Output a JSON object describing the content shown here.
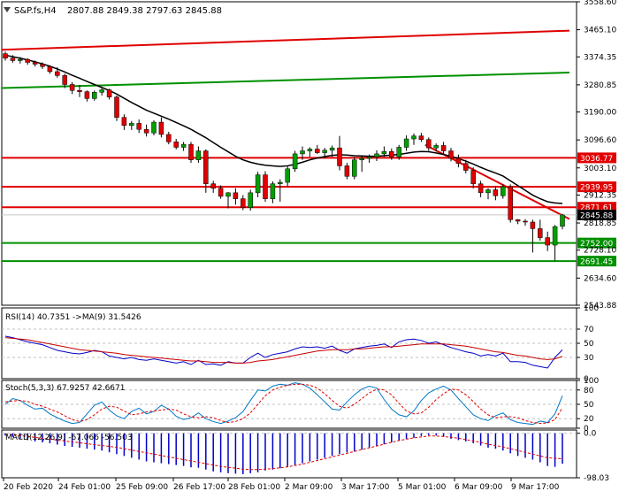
{
  "chart_data": [
    {
      "type": "candlestick",
      "title": "S&P.fs,H4",
      "ohlc_label": "2807.88 2849.38 2797.63 2845.88",
      "ylim": [
        2543.88,
        3558.6
      ],
      "y_ticks": [
        "3558.60",
        "3465.10",
        "3374.35",
        "3280.85",
        "3190.00",
        "3096.60",
        "3003.10",
        "2912.35",
        "2818.85",
        "2728.10",
        "2634.60",
        "2543.88"
      ],
      "x_labels": [
        "20 Feb 2020",
        "24 Feb 01:00",
        "25 Feb 09:00",
        "26 Feb 17:00",
        "28 Feb 01:00",
        "2 Mar 09:00",
        "3 Mar 17:00",
        "5 Mar 01:00",
        "6 Mar 09:00",
        "9 Mar 17:00"
      ],
      "candles": [
        [
          3385,
          3392,
          3362,
          3370
        ],
        [
          3370,
          3380,
          3355,
          3362
        ],
        [
          3362,
          3374,
          3352,
          3366
        ],
        [
          3366,
          3370,
          3348,
          3356
        ],
        [
          3356,
          3362,
          3342,
          3350
        ],
        [
          3350,
          3356,
          3334,
          3342
        ],
        [
          3342,
          3346,
          3318,
          3325
        ],
        [
          3325,
          3340,
          3305,
          3312
        ],
        [
          3312,
          3318,
          3270,
          3282
        ],
        [
          3282,
          3290,
          3250,
          3262
        ],
        [
          3262,
          3280,
          3240,
          3258
        ],
        [
          3258,
          3262,
          3225,
          3235
        ],
        [
          3235,
          3262,
          3228,
          3256
        ],
        [
          3256,
          3270,
          3245,
          3264
        ],
        [
          3264,
          3268,
          3232,
          3240
        ],
        [
          3240,
          3245,
          3160,
          3172
        ],
        [
          3172,
          3182,
          3130,
          3145
        ],
        [
          3145,
          3160,
          3130,
          3152
        ],
        [
          3152,
          3165,
          3120,
          3132
        ],
        [
          3132,
          3148,
          3108,
          3120
        ],
        [
          3120,
          3162,
          3112,
          3156
        ],
        [
          3156,
          3172,
          3105,
          3115
        ],
        [
          3115,
          3124,
          3082,
          3090
        ],
        [
          3090,
          3100,
          3065,
          3072
        ],
        [
          3072,
          3090,
          3060,
          3082
        ],
        [
          3082,
          3090,
          3020,
          3030
        ],
        [
          3030,
          3075,
          3020,
          3060
        ],
        [
          3060,
          3065,
          2920,
          2950
        ],
        [
          2950,
          2960,
          2920,
          2935
        ],
        [
          2935,
          2945,
          2900,
          2908
        ],
        [
          2908,
          2922,
          2868,
          2920
        ],
        [
          2920,
          2935,
          2880,
          2900
        ],
        [
          2900,
          2912,
          2862,
          2870
        ],
        [
          2870,
          2930,
          2860,
          2920
        ],
        [
          2920,
          2990,
          2905,
          2980
        ],
        [
          2980,
          2992,
          2890,
          2900
        ],
        [
          2900,
          2958,
          2885,
          2950
        ],
        [
          2950,
          2965,
          2890,
          2955
        ],
        [
          2955,
          3010,
          2940,
          3000
        ],
        [
          3000,
          3060,
          2990,
          3050
        ],
        [
          3050,
          3075,
          3030,
          3060
        ],
        [
          3060,
          3072,
          3040,
          3066
        ],
        [
          3066,
          3080,
          3050,
          3054
        ],
        [
          3054,
          3070,
          3035,
          3062
        ],
        [
          3062,
          3078,
          3040,
          3070
        ],
        [
          3070,
          3110,
          2995,
          3010
        ],
        [
          3010,
          3020,
          2965,
          2975
        ],
        [
          2975,
          3040,
          2965,
          3030
        ],
        [
          3030,
          3045,
          2990,
          3035
        ],
        [
          3035,
          3048,
          3020,
          3040
        ],
        [
          3040,
          3062,
          3026,
          3050
        ],
        [
          3050,
          3075,
          3040,
          3058
        ],
        [
          3058,
          3068,
          3030,
          3040
        ],
        [
          3040,
          3080,
          3030,
          3072
        ],
        [
          3072,
          3112,
          3060,
          3100
        ],
        [
          3100,
          3118,
          3080,
          3110
        ],
        [
          3110,
          3120,
          3090,
          3098
        ],
        [
          3098,
          3105,
          3060,
          3070
        ],
        [
          3070,
          3085,
          3058,
          3078
        ],
        [
          3078,
          3090,
          3050,
          3060
        ],
        [
          3060,
          3070,
          3025,
          3035
        ],
        [
          3035,
          3048,
          3005,
          3018
        ],
        [
          3018,
          3030,
          2985,
          2995
        ],
        [
          2995,
          3005,
          2935,
          2950
        ],
        [
          2950,
          2960,
          2905,
          2920
        ],
        [
          2920,
          2935,
          2898,
          2930
        ],
        [
          2930,
          2942,
          2895,
          2910
        ],
        [
          2910,
          2948,
          2900,
          2940
        ],
        [
          2940,
          2948,
          2820,
          2830
        ],
        [
          2830,
          2832,
          2815,
          2825
        ],
        [
          2825,
          2832,
          2810,
          2822
        ],
        [
          2822,
          2830,
          2720,
          2800
        ],
        [
          2800,
          2830,
          2760,
          2770
        ],
        [
          2770,
          2790,
          2725,
          2745
        ],
        [
          2745,
          2812,
          2693,
          2807
        ],
        [
          2807.88,
          2849.38,
          2797.63,
          2845.88
        ]
      ],
      "series": [
        {
          "name": "",
          "color": "#000000",
          "values": [
            3380,
            3375,
            3370,
            3364,
            3358,
            3351,
            3343,
            3334,
            3324,
            3313,
            3303,
            3292,
            3282,
            3272,
            3262,
            3250,
            3236,
            3222,
            3209,
            3196,
            3186,
            3176,
            3166,
            3155,
            3144,
            3132,
            3118,
            3104,
            3088,
            3072,
            3057,
            3042,
            3030,
            3022,
            3016,
            3012,
            3010,
            3008,
            3010,
            3015,
            3022,
            3030,
            3036,
            3041,
            3045,
            3047,
            3046,
            3044,
            3043,
            3042,
            3042,
            3044,
            3046,
            3048,
            3052,
            3056,
            3058,
            3057,
            3053,
            3048,
            3042,
            3034,
            3026,
            3016,
            3005,
            2995,
            2986,
            2976,
            2960,
            2944,
            2928,
            2912,
            2900,
            2890,
            2886,
            2884
          ]
        }
      ],
      "trendlines": [
        {
          "color": "#e00000",
          "x": [
            0,
            75
          ],
          "y": [
            3398,
            3462
          ]
        },
        {
          "color": "#009000",
          "x": [
            0,
            75
          ],
          "y": [
            3270,
            3322
          ]
        },
        {
          "color": "#e00000",
          "x": [
            57,
            75
          ],
          "y": [
            3080,
            2832
          ]
        }
      ],
      "levels": [
        {
          "value": 3036.77,
          "label": "3036.77",
          "line_color": "#e00000",
          "tag_color": "#e00000"
        },
        {
          "value": 2939.95,
          "label": "2939.95",
          "line_color": "#e00000",
          "tag_color": "#e00000"
        },
        {
          "value": 2871.61,
          "label": "2871.61",
          "line_color": "#e00000",
          "tag_color": "#e00000"
        },
        {
          "value": 2845.88,
          "label": "2845.88",
          "line_color": "#c8c8c8",
          "tag_color": "#000000"
        },
        {
          "value": 2752.0,
          "label": "2752.00",
          "line_color": "#009000",
          "tag_color": "#009000"
        },
        {
          "value": 2691.45,
          "label": "2691.45",
          "line_color": "#009000",
          "tag_color": "#009000"
        }
      ],
      "colors": {
        "bull": "#00a000",
        "bear": "#e00000"
      }
    },
    {
      "type": "line",
      "title": "RSI(14) 40.7351 ->MA(9) 31.5426",
      "ylim": [
        0,
        100
      ],
      "y_ticks": [
        "100",
        "70",
        "50",
        "30",
        "0"
      ],
      "series": [
        {
          "name": "",
          "color": "#0000c8",
          "values": [
            60,
            58,
            55,
            52,
            50,
            48,
            44,
            40,
            38,
            36,
            35,
            37,
            40,
            38,
            32,
            30,
            28,
            30,
            27,
            26,
            28,
            26,
            24,
            22,
            24,
            20,
            26,
            20,
            21,
            19,
            24,
            22,
            22,
            30,
            36,
            30,
            34,
            36,
            38,
            42,
            45,
            44,
            45,
            43,
            46,
            40,
            36,
            42,
            44,
            46,
            47,
            49,
            44,
            52,
            55,
            56,
            54,
            50,
            52,
            48,
            44,
            41,
            38,
            36,
            32,
            34,
            32,
            36,
            24,
            24,
            23,
            19,
            17,
            15,
            30,
            40.7351
          ]
        },
        {
          "name": "",
          "color": "#c80000",
          "values": [
            58,
            57,
            56,
            55,
            53,
            51,
            49,
            47,
            45,
            43,
            41,
            40,
            39,
            38,
            37,
            36,
            34,
            33,
            32,
            31,
            30,
            29,
            28,
            27,
            26,
            25,
            25,
            24,
            23,
            23,
            23,
            22,
            22,
            23,
            25,
            26,
            27,
            29,
            31,
            33,
            35,
            37,
            39,
            40,
            41,
            41,
            41,
            42,
            42,
            43,
            44,
            45,
            45,
            46,
            47,
            48,
            49,
            49,
            49,
            49,
            48,
            47,
            46,
            44,
            42,
            40,
            38,
            37,
            35,
            33,
            32,
            30,
            28,
            27,
            28,
            31.5426
          ]
        }
      ]
    },
    {
      "type": "line",
      "title": "Stoch(5,3,3) 67.9257 42.6671",
      "ylim": [
        0,
        100
      ],
      "y_ticks": [
        "100",
        "80",
        "50",
        "20",
        "0"
      ],
      "series": [
        {
          "name": "",
          "color": "#0078c8",
          "values": [
            50,
            62,
            58,
            48,
            40,
            42,
            30,
            22,
            15,
            10,
            12,
            30,
            48,
            55,
            38,
            26,
            20,
            35,
            42,
            30,
            35,
            48,
            40,
            25,
            18,
            22,
            32,
            20,
            14,
            10,
            15,
            22,
            35,
            58,
            80,
            78,
            88,
            92,
            90,
            95,
            92,
            84,
            70,
            55,
            40,
            38,
            55,
            70,
            82,
            88,
            84,
            60,
            40,
            28,
            24,
            36,
            58,
            74,
            82,
            88,
            80,
            62,
            45,
            28,
            20,
            16,
            26,
            32,
            18,
            12,
            10,
            8,
            15,
            12,
            30,
            67.9257
          ]
        },
        {
          "name": "",
          "color": "#e00000",
          "values": [
            55,
            57,
            58,
            56,
            50,
            46,
            40,
            34,
            26,
            18,
            14,
            18,
            28,
            40,
            46,
            44,
            36,
            28,
            30,
            34,
            36,
            38,
            40,
            38,
            30,
            24,
            22,
            24,
            22,
            16,
            12,
            14,
            20,
            32,
            50,
            68,
            80,
            86,
            90,
            92,
            92,
            90,
            84,
            72,
            58,
            46,
            42,
            50,
            62,
            74,
            82,
            80,
            70,
            52,
            36,
            30,
            32,
            44,
            60,
            72,
            82,
            80,
            70,
            56,
            40,
            28,
            22,
            24,
            24,
            22,
            16,
            12,
            10,
            11,
            18,
            42.6671
          ]
        }
      ]
    },
    {
      "type": "bar",
      "title": "MACD(12,26,9) -67.066 -56.503",
      "y_ticks": [
        "0.0",
        "-98.03"
      ],
      "ylim": [
        -98.03,
        7.24
      ],
      "series": [
        {
          "name": "",
          "color": "#0000c8",
          "values": [
            -5,
            -8,
            -12,
            -15,
            -18,
            -20,
            -22,
            -25,
            -28,
            -30,
            -32,
            -34,
            -36,
            -38,
            -42,
            -46,
            -50,
            -54,
            -58,
            -62,
            -64,
            -66,
            -68,
            -70,
            -72,
            -75,
            -76,
            -80,
            -84,
            -86,
            -88,
            -89,
            -90,
            -88,
            -86,
            -82,
            -80,
            -77,
            -74,
            -70,
            -66,
            -62,
            -58,
            -54,
            -50,
            -46,
            -42,
            -40,
            -36,
            -32,
            -28,
            -24,
            -20,
            -16,
            -12,
            -10,
            -6,
            -4,
            -5,
            -8,
            -12,
            -15,
            -18,
            -22,
            -27,
            -32,
            -34,
            -38,
            -44,
            -50,
            -54,
            -58,
            -64,
            -72,
            -74,
            -67.066
          ]
        },
        {
          "name": "",
          "color": "#e00000",
          "values": [
            -2,
            -3,
            -5,
            -7,
            -9,
            -11,
            -13,
            -15,
            -17,
            -19,
            -21,
            -23,
            -25,
            -27,
            -29,
            -31,
            -34,
            -37,
            -40,
            -43,
            -46,
            -49,
            -52,
            -55,
            -58,
            -61,
            -64,
            -67,
            -70,
            -73,
            -75,
            -77,
            -79,
            -80,
            -80,
            -79,
            -78,
            -76,
            -74,
            -71,
            -68,
            -64,
            -60,
            -56,
            -52,
            -48,
            -44,
            -40,
            -36,
            -32,
            -28,
            -24,
            -20,
            -16,
            -13,
            -10,
            -8,
            -6,
            -6,
            -7,
            -9,
            -11,
            -14,
            -17,
            -20,
            -24,
            -27,
            -30,
            -34,
            -38,
            -42,
            -46,
            -50,
            -54,
            -55,
            -56.503
          ]
        }
      ]
    }
  ]
}
